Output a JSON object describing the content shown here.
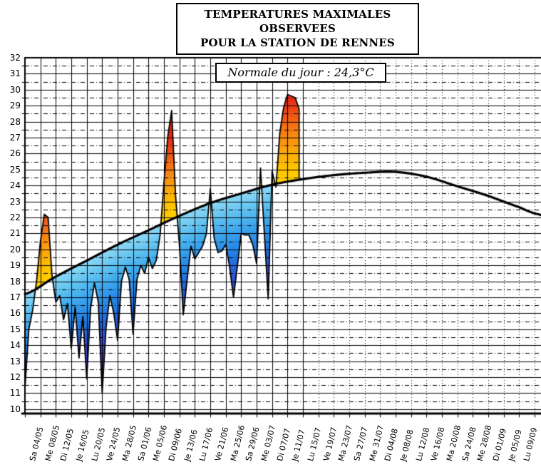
{
  "title": {
    "line1": "TEMPERATURES MAXIMALES OBSERVEES",
    "line2": "POUR LA STATION DE RENNES"
  },
  "annotation": {
    "normale_du_jour_label": "Normale du jour : 24,3°C"
  },
  "y_axis_tick_labels": [
    "32",
    "31",
    "30",
    "29",
    "28",
    "27",
    "26",
    "25",
    "24",
    "23",
    "22",
    "21",
    "20",
    "19",
    "18",
    "17",
    "16",
    "15",
    "14",
    "13",
    "12",
    "11",
    "10"
  ],
  "chart_data": {
    "type": "area",
    "title": "TEMPERATURES MAXIMALES OBSERVEES POUR LA STATION DE RENNES",
    "ylim": [
      10,
      32
    ],
    "y_major_step": 1,
    "y_minor_step": 0.5,
    "x_tick_interval_days": 4,
    "x_tick_labels": [
      "Sa 04/05",
      "Me 08/05",
      "Di 12/05",
      "Je 16/05",
      "Lu 20/05",
      "Ve 24/05",
      "Ma 28/05",
      "Sa 01/06",
      "Me 05/06",
      "Di 09/06",
      "Je 13/06",
      "Lu 17/06",
      "Ve 21/06",
      "Ma 25/06",
      "Sa 29/06",
      "Me 03/07",
      "Di 07/07",
      "Je 11/07",
      "Lu 15/07",
      "Ve 19/07",
      "Ma 23/07",
      "Sa 27/07",
      "Me 31/07",
      "Di 04/08",
      "Je 08/08",
      "Lu 12/08",
      "Ve 16/08",
      "Ma 20/08",
      "Sa 24/08",
      "Me 28/08",
      "Di 01/09",
      "Je 05/09",
      "Lu 09/09"
    ],
    "observed_series": {
      "name": "Température maximale observée",
      "start_tick_label": "Sa 04/05",
      "daily_values": [
        11.3,
        15.0,
        16.2,
        18.0,
        20.5,
        22.2,
        22.0,
        18.4,
        16.7,
        17.1,
        15.6,
        16.6,
        13.8,
        16.4,
        13.2,
        15.8,
        11.9,
        16.3,
        17.9,
        16.7,
        11.0,
        15.1,
        17.1,
        16.0,
        14.3,
        18.0,
        18.9,
        18.1,
        14.7,
        18.1,
        19.0,
        18.5,
        19.5,
        18.8,
        19.3,
        20.9,
        24.2,
        27.1,
        28.7,
        23.4,
        20.3,
        15.9,
        18.1,
        20.2,
        19.4,
        19.8,
        20.2,
        21.0,
        23.8,
        20.7,
        19.8,
        19.9,
        20.3,
        18.9,
        17.0,
        18.9,
        21.0,
        20.9,
        20.9,
        20.3,
        19.1,
        25.1,
        21.0,
        16.9,
        24.9,
        23.9,
        27.3,
        28.9,
        29.7,
        29.6,
        29.5,
        28.8
      ]
    },
    "normal_curve": {
      "name": "Normale du jour",
      "sample_days": [
        0,
        8,
        16,
        24,
        32,
        40,
        48,
        56,
        64,
        72,
        80,
        88,
        96,
        104,
        112,
        120,
        128,
        133
      ],
      "sample_values": [
        17.2,
        18.3,
        19.3,
        20.3,
        21.2,
        22.1,
        22.9,
        23.5,
        24.05,
        24.4,
        24.65,
        24.8,
        24.85,
        24.55,
        23.95,
        23.35,
        22.65,
        22.2
      ],
      "normale_du_jour": 24.3
    },
    "legend_position": "none",
    "grid": true,
    "colors": {
      "background": "#ffffff",
      "line": "#000000",
      "above_normal_stops": [
        [
          0,
          "#ffd200"
        ],
        [
          1,
          "#fec100"
        ],
        [
          2,
          "#fba70c"
        ],
        [
          3,
          "#f78514"
        ],
        [
          4,
          "#f25c13"
        ],
        [
          5,
          "#ea3114"
        ],
        [
          6,
          "#e22117"
        ],
        [
          10,
          "#dd1d15"
        ]
      ],
      "below_normal_stops": [
        [
          0,
          "#8ed9f6"
        ],
        [
          -1,
          "#63c4f2"
        ],
        [
          -2,
          "#41abee"
        ],
        [
          -3,
          "#2b8fe9"
        ],
        [
          -4,
          "#2173e2"
        ],
        [
          -5,
          "#2b57da"
        ],
        [
          -6,
          "#4343d2"
        ],
        [
          -7,
          "#5c33cb"
        ],
        [
          -8,
          "#7627c4"
        ],
        [
          -9,
          "#8d22bf"
        ],
        [
          -12,
          "#9420bd"
        ]
      ]
    }
  }
}
